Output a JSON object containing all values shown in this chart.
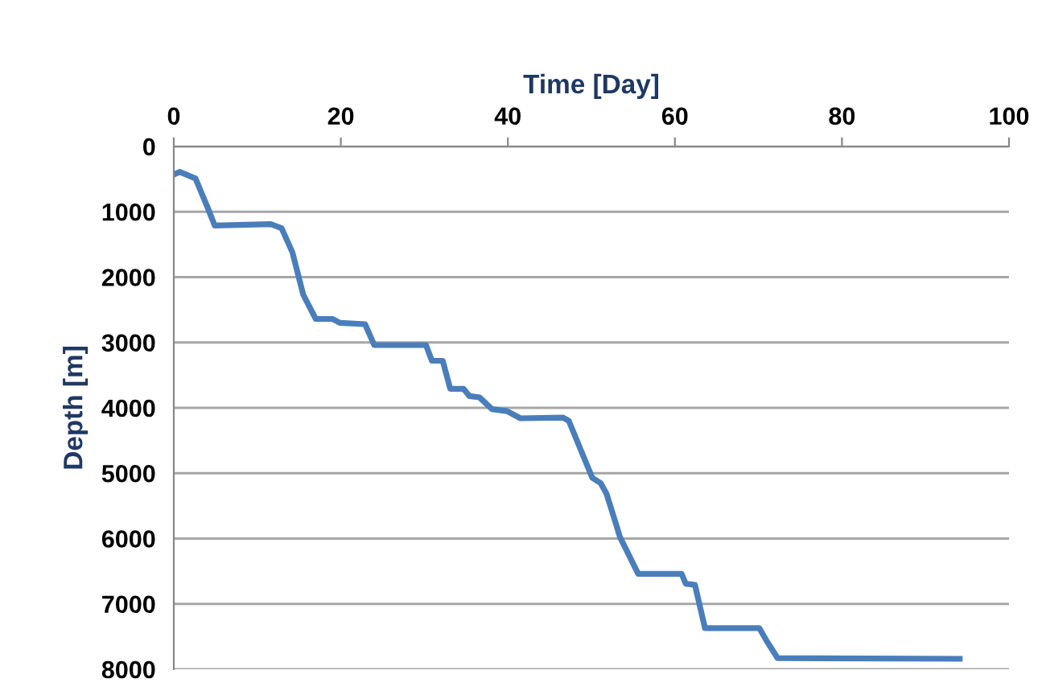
{
  "chart_data": {
    "type": "line",
    "xlabel": "Time [Day]",
    "ylabel": "Depth [m]",
    "xlim": [
      0,
      100
    ],
    "xticks": [
      0,
      20,
      40,
      60,
      80,
      100
    ],
    "ylim": [
      8000,
      0
    ],
    "yticks": [
      0,
      1000,
      2000,
      3000,
      4000,
      5000,
      6000,
      7000,
      8000
    ],
    "grid": "y",
    "legend": false,
    "marker": "none",
    "line_style": "solid",
    "series": [
      {
        "color": "#4a7ebb",
        "x": [
          0,
          0.7,
          2.6,
          4.0,
          4.9,
          11.6,
          12.9,
          14.2,
          15.5,
          17.0,
          19.0,
          19.9,
          22.9,
          24.0,
          30.2,
          30.9,
          32.2,
          33.1,
          34.7,
          35.4,
          36.6,
          38.1,
          39.9,
          41.5,
          46.6,
          47.3,
          50.1,
          51.1,
          51.8,
          53.0,
          53.4,
          55.6,
          60.8,
          61.3,
          62.4,
          63.6,
          70.1,
          71.0,
          72.3,
          94.1
        ],
        "values": [
          430,
          390,
          490,
          920,
          1210,
          1190,
          1250,
          1620,
          2270,
          2640,
          2640,
          2700,
          2720,
          3040,
          3040,
          3280,
          3280,
          3710,
          3710,
          3820,
          3840,
          4020,
          4050,
          4160,
          4150,
          4200,
          5070,
          5150,
          5310,
          5800,
          5970,
          6540,
          6540,
          6690,
          6710,
          7370,
          7370,
          7570,
          7830,
          7840
        ]
      }
    ]
  }
}
